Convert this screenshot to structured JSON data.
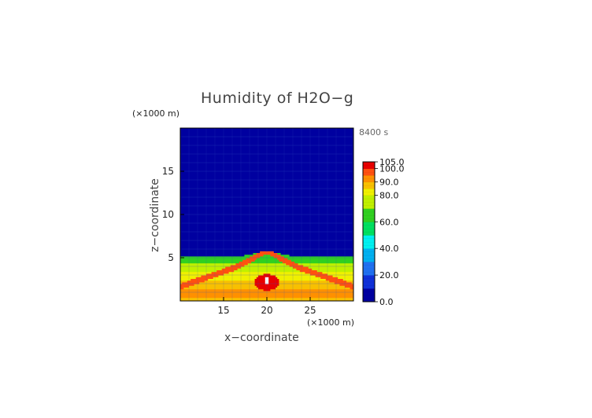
{
  "chart_data": {
    "type": "heatmap",
    "title": "Humidity of H2O−g",
    "time_label": "8400 s",
    "xlabel": "x−coordinate",
    "ylabel": "z−coordinate",
    "x_unit": "(×1000 m)",
    "y_unit": "(×1000 m)",
    "xlim": [
      10,
      30
    ],
    "ylim": [
      0,
      20
    ],
    "x_ticks": [
      15,
      20,
      25
    ],
    "y_ticks": [
      5,
      10,
      15
    ],
    "colorbar": {
      "range": [
        0,
        105
      ],
      "tick_values": [
        0,
        20,
        40,
        60,
        80,
        90,
        100,
        105
      ],
      "tick_labels": [
        "0.0",
        "20.0",
        "40.0",
        "60.0",
        "80.0",
        "90.0",
        "100.0",
        "105.0"
      ],
      "colors": [
        {
          "level": 0,
          "color": "#0000a0"
        },
        {
          "level": 10,
          "color": "#1030d8"
        },
        {
          "level": 20,
          "color": "#2070f0"
        },
        {
          "level": 30,
          "color": "#00b0f0"
        },
        {
          "level": 40,
          "color": "#00f0f0"
        },
        {
          "level": 50,
          "color": "#00e060"
        },
        {
          "level": 60,
          "color": "#30d020"
        },
        {
          "level": 70,
          "color": "#c0f000"
        },
        {
          "level": 80,
          "color": "#f0f000"
        },
        {
          "level": 85,
          "color": "#f8c000"
        },
        {
          "level": 90,
          "color": "#ff9000"
        },
        {
          "level": 95,
          "color": "#ff5010"
        },
        {
          "level": 100,
          "color": "#e80000"
        },
        {
          "level": 105,
          "color": "#ffffff"
        }
      ]
    },
    "field_description_values": {
      "upper_background": 5,
      "boundary_layer_top_km": 5.2,
      "bands": [
        {
          "z": [
            0.0,
            0.5
          ],
          "value": 85
        },
        {
          "z": [
            0.5,
            1.5
          ],
          "value": 90
        },
        {
          "z": [
            1.5,
            2.5
          ],
          "value": 88
        },
        {
          "z": [
            2.5,
            3.5
          ],
          "value": 80
        },
        {
          "z": [
            3.5,
            4.5
          ],
          "value": 72
        },
        {
          "z": [
            4.5,
            5.2
          ],
          "value": 68
        }
      ],
      "core": {
        "x": 20,
        "z": 2.2,
        "value": 100
      },
      "arches_value": 95
    }
  }
}
